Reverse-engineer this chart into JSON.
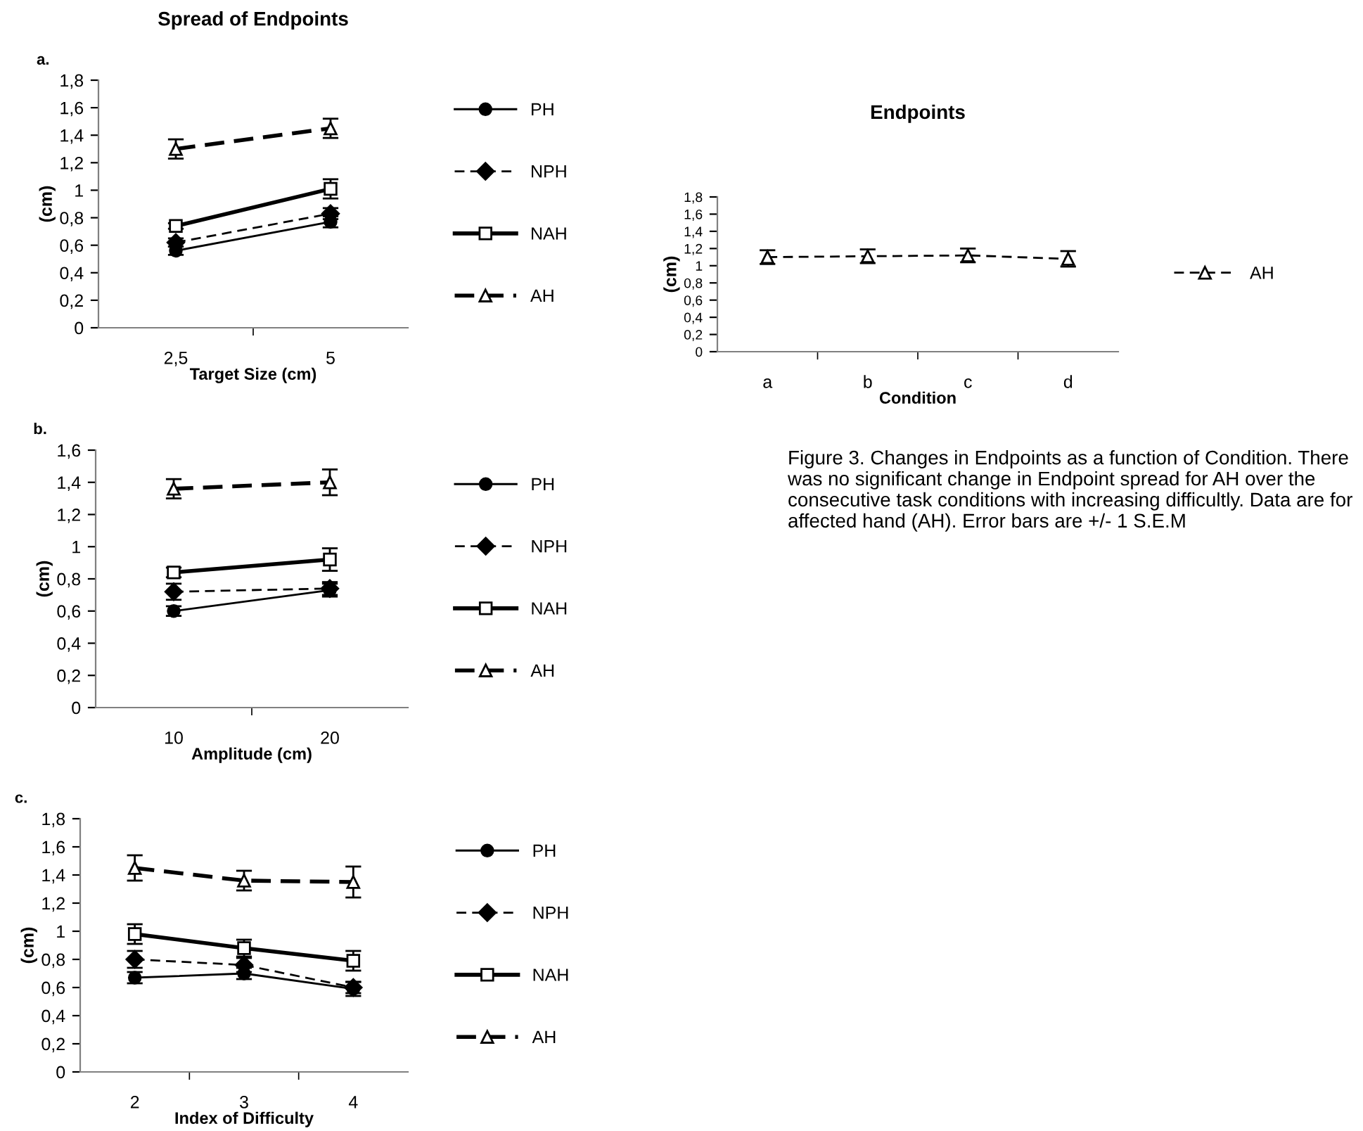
{
  "chart_data": [
    {
      "type": "line",
      "title": "Spread of Endpoints",
      "xlabel": "Target Size (cm)",
      "ylabel": "(cm)",
      "annotations": [
        "a."
      ],
      "categories": [
        "2,5",
        "5"
      ],
      "ylim": [
        0,
        1.8
      ],
      "yticks": [
        0,
        {
          "value": 0.2,
          "label": "0,2"
        },
        {
          "value": 0.4,
          "label": "0,4"
        },
        {
          "value": 0.6,
          "label": "0,6"
        },
        {
          "value": 0.8,
          "label": "0,8"
        },
        1,
        {
          "value": 1.2,
          "label": "1,2"
        },
        {
          "value": 1.4,
          "label": "1,4"
        },
        {
          "value": 1.6,
          "label": "1,6"
        },
        {
          "value": 1.8,
          "label": "1,8"
        }
      ],
      "legend": "right",
      "grid": false,
      "series": [
        {
          "name": "PH",
          "color": "#000000",
          "marker": "circle",
          "line_style": "solid",
          "values": [
            0.56,
            0.77
          ],
          "errors": [
            0.03,
            0.04
          ]
        },
        {
          "name": "NPH",
          "color": "#000000",
          "marker": "diamond",
          "line_style": "dashed",
          "values": [
            0.62,
            0.83
          ],
          "errors": [
            0.03,
            0.04
          ]
        },
        {
          "name": "NAH",
          "color": "#000000",
          "marker": "square",
          "line_style": "solid",
          "values": [
            0.74,
            1.01
          ],
          "errors": [
            0.02,
            0.07
          ]
        },
        {
          "name": "AH",
          "color": "#000000",
          "marker": "triangle",
          "line_style": "dashed",
          "values": [
            1.3,
            1.45
          ],
          "errors": [
            0.07,
            0.07
          ]
        }
      ]
    },
    {
      "type": "line",
      "xlabel": "Amplitude (cm)",
      "ylabel": "(cm)",
      "annotations": [
        "b."
      ],
      "categories": [
        "10",
        "20"
      ],
      "ylim": [
        0,
        1.6
      ],
      "yticks": [
        0,
        {
          "value": 0.2,
          "label": "0,2"
        },
        {
          "value": 0.4,
          "label": "0,4"
        },
        {
          "value": 0.6,
          "label": "0,6"
        },
        {
          "value": 0.8,
          "label": "0,8"
        },
        1,
        {
          "value": 1.2,
          "label": "1,2"
        },
        {
          "value": 1.4,
          "label": "1,4"
        },
        {
          "value": 1.6,
          "label": "1,6"
        }
      ],
      "legend": "right",
      "grid": false,
      "series": [
        {
          "name": "PH",
          "color": "#000000",
          "marker": "circle",
          "line_style": "solid",
          "values": [
            0.6,
            0.73
          ],
          "errors": [
            0.03,
            0.04
          ]
        },
        {
          "name": "NPH",
          "color": "#000000",
          "marker": "diamond",
          "line_style": "dashed",
          "values": [
            0.72,
            0.74
          ],
          "errors": [
            0.05,
            0.04
          ]
        },
        {
          "name": "NAH",
          "color": "#000000",
          "marker": "square",
          "line_style": "solid",
          "values": [
            0.84,
            0.92
          ],
          "errors": [
            0.03,
            0.07
          ]
        },
        {
          "name": "AH",
          "color": "#000000",
          "marker": "triangle",
          "line_style": "dashed",
          "values": [
            1.36,
            1.4
          ],
          "errors": [
            0.06,
            0.08
          ]
        }
      ]
    },
    {
      "type": "line",
      "xlabel": "Index of Difficulty",
      "ylabel": "(cm)",
      "annotations": [
        "c."
      ],
      "categories": [
        "2",
        "3",
        "4"
      ],
      "ylim": [
        0,
        1.8
      ],
      "yticks": [
        0,
        {
          "value": 0.2,
          "label": "0,2"
        },
        {
          "value": 0.4,
          "label": "0,4"
        },
        {
          "value": 0.6,
          "label": "0,6"
        },
        {
          "value": 0.8,
          "label": "0,8"
        },
        1,
        {
          "value": 1.2,
          "label": "1,2"
        },
        {
          "value": 1.4,
          "label": "1,4"
        },
        {
          "value": 1.6,
          "label": "1,6"
        },
        {
          "value": 1.8,
          "label": "1,8"
        }
      ],
      "legend": "right",
      "grid": false,
      "series": [
        {
          "name": "PH",
          "color": "#000000",
          "marker": "circle",
          "line_style": "solid",
          "values": [
            0.67,
            0.7,
            0.59
          ],
          "errors": [
            0.04,
            0.04,
            0.05
          ]
        },
        {
          "name": "NPH",
          "color": "#000000",
          "marker": "diamond",
          "line_style": "dashed",
          "values": [
            0.8,
            0.76,
            0.6
          ],
          "errors": [
            0.06,
            0.05,
            0.04
          ]
        },
        {
          "name": "NAH",
          "color": "#000000",
          "marker": "square",
          "line_style": "solid",
          "values": [
            0.98,
            0.88,
            0.79
          ],
          "errors": [
            0.07,
            0.06,
            0.07
          ]
        },
        {
          "name": "AH",
          "color": "#000000",
          "marker": "triangle",
          "line_style": "dashed",
          "values": [
            1.45,
            1.36,
            1.35
          ],
          "errors": [
            0.09,
            0.07,
            0.11
          ]
        }
      ]
    },
    {
      "type": "line",
      "title": "Endpoints",
      "xlabel": "Condition",
      "ylabel": "(cm)",
      "annotations": [
        "Figure 3. Changes in Endpoints as a function of Condition. There was no significant change in Endpoint spread for AH over the consecutive task conditions with increasing difficultly. Data are for affected hand (AH). Error bars are +/- 1 S.E.M"
      ],
      "categories": [
        "a",
        "b",
        "c",
        "d"
      ],
      "ylim": [
        0,
        1.8
      ],
      "yticks": [
        0,
        {
          "value": 0.2,
          "label": "0,2"
        },
        {
          "value": 0.4,
          "label": "0,4"
        },
        {
          "value": 0.6,
          "label": "0,6"
        },
        {
          "value": 0.8,
          "label": "0,8"
        },
        1,
        {
          "value": 1.2,
          "label": "1,2"
        },
        {
          "value": 1.4,
          "label": "1,4"
        },
        {
          "value": 1.6,
          "label": "1,6"
        },
        {
          "value": 1.8,
          "label": "1,8"
        }
      ],
      "legend": "right",
      "grid": false,
      "series": [
        {
          "name": "AH",
          "color": "#000000",
          "marker": "triangle",
          "line_style": "dashed",
          "values": [
            1.1,
            1.11,
            1.12,
            1.08
          ],
          "errors": [
            0.08,
            0.08,
            0.08,
            0.09
          ]
        }
      ]
    }
  ]
}
